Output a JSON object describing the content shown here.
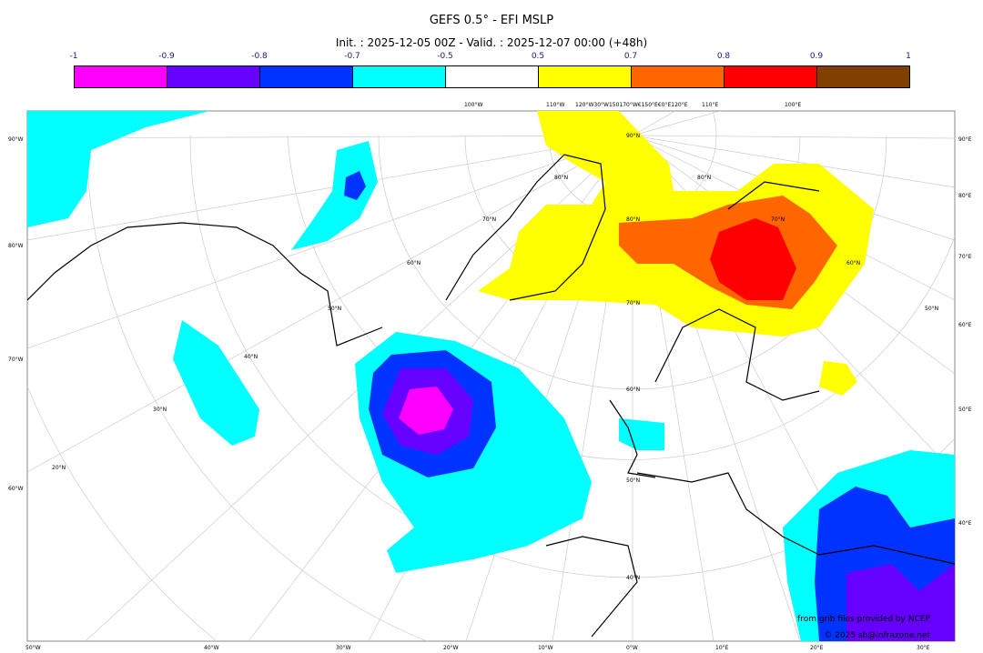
{
  "header": {
    "title": "GEFS 0.5° - EFI MSLP",
    "subtitle": "Init. : 2025-12-05 00Z - Valid. : 2025-12-07 00:00 (+48h)"
  },
  "colorbar": {
    "labels": [
      "-1",
      "-0.9",
      "-0.8",
      "-0.7",
      "-0.5",
      "0.5",
      "0.7",
      "0.8",
      "0.9",
      "1"
    ],
    "colors": [
      "#ff00ff",
      "#6600ff",
      "#0033ff",
      "#00ffff",
      "#ffffff",
      "#ffff00",
      "#ff6600",
      "#ff0000",
      "#804000"
    ]
  },
  "map": {
    "left_labels": [
      "90°W",
      "80°W",
      "70°W",
      "60°W"
    ],
    "right_labels": [
      "90°E",
      "80°E",
      "70°E",
      "60°E",
      "50°E",
      "40°E"
    ],
    "bottom_labels": [
      "50°W",
      "40°W",
      "30°W",
      "20°W",
      "10°W",
      "0°W",
      "10°E",
      "20°E",
      "30°E"
    ],
    "top_labels": [
      "100°W",
      "110°W",
      "120°W30°W150170°W€150°E€0°E120°E",
      "110°E",
      "100°E"
    ],
    "lat_labels": [
      "90°N",
      "80°N",
      "70°N",
      "60°N",
      "50°N",
      "40°N",
      "80°N",
      "70°N",
      "60°N",
      "50°N",
      "40°N",
      "30°N",
      "20°N",
      "80°N",
      "70°N",
      "60°N",
      "50°N"
    ]
  },
  "credits": {
    "source": "from grib files provided by NCEP",
    "copyright": "© 2025 sb@infrazone.net"
  }
}
